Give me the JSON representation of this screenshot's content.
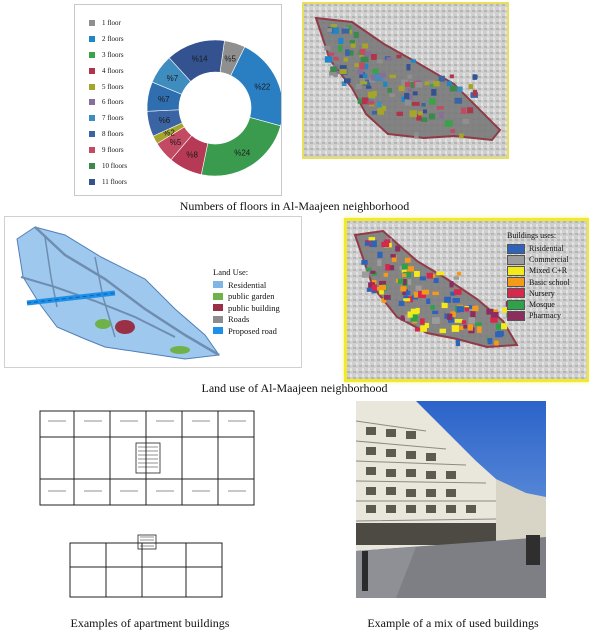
{
  "floors_chart": {
    "legend": [
      {
        "label": "1 floor",
        "color": "#8f8f8f"
      },
      {
        "label": "2 floors",
        "color": "#1f86c8"
      },
      {
        "label": "3 floors",
        "color": "#3aa24a"
      },
      {
        "label": "4 floors",
        "color": "#b0354b"
      },
      {
        "label": "5 floors",
        "color": "#a5a529"
      },
      {
        "label": "6 floors",
        "color": "#86709a"
      },
      {
        "label": "7 floors",
        "color": "#3f8dbf"
      },
      {
        "label": "8 floors",
        "color": "#3a64a4"
      },
      {
        "label": "9 floors",
        "color": "#c24a62"
      },
      {
        "label": "10 floors",
        "color": "#3a8a4e"
      },
      {
        "label": "11 floors",
        "color": "#34528f"
      }
    ]
  },
  "chart_data": {
    "type": "pie",
    "variant": "donut",
    "slices": [
      {
        "label": "%5",
        "value": 5,
        "color": "#8f8f8f"
      },
      {
        "label": "%22",
        "value": 22,
        "color": "#2a7fc2"
      },
      {
        "label": "%24",
        "value": 24,
        "color": "#3a9b4e"
      },
      {
        "label": "%8",
        "value": 8,
        "color": "#b63a55"
      },
      {
        "label": "%5",
        "value": 5,
        "color": "#c24a62"
      },
      {
        "label": "%2",
        "value": 2,
        "color": "#a5a529"
      },
      {
        "label": "%6",
        "value": 6,
        "color": "#3a64a4"
      },
      {
        "label": "%7",
        "value": 7,
        "color": "#2f6fb0"
      },
      {
        "label": "%7",
        "value": 7,
        "color": "#3f8dbf"
      },
      {
        "label": "%14",
        "value": 14,
        "color": "#34528f"
      }
    ]
  },
  "captions": {
    "floors": "Numbers of floors in Al-Maajeen neighborhood",
    "landuse": "Land use of Al-Maajeen neighborhood",
    "apartments": "Examples of apartment buildings",
    "mixed": "Example of a mix of used buildings"
  },
  "landuse": {
    "title": "Land Use:",
    "items": [
      {
        "label": "Residential",
        "color": "#7fb6e6"
      },
      {
        "label": "public garden",
        "color": "#6fb24a"
      },
      {
        "label": "public building",
        "color": "#9a3046"
      },
      {
        "label": "Roads",
        "color": "#8c8c8c"
      },
      {
        "label": "Proposed road",
        "color": "#1e90e8"
      }
    ]
  },
  "building_uses": {
    "title": "Buildings uses:",
    "items": [
      {
        "label": "Risidential",
        "color": "#2d63b8"
      },
      {
        "label": "Commercial",
        "color": "#9c9c9c"
      },
      {
        "label": "Mixed C+R",
        "color": "#f3ea17"
      },
      {
        "label": "Basic school",
        "color": "#f39a1a"
      },
      {
        "label": "Nursery",
        "color": "#d6284c"
      },
      {
        "label": "Mosque",
        "color": "#2fa14b"
      },
      {
        "label": "Pharmacy",
        "color": "#8b2e5e"
      }
    ]
  }
}
